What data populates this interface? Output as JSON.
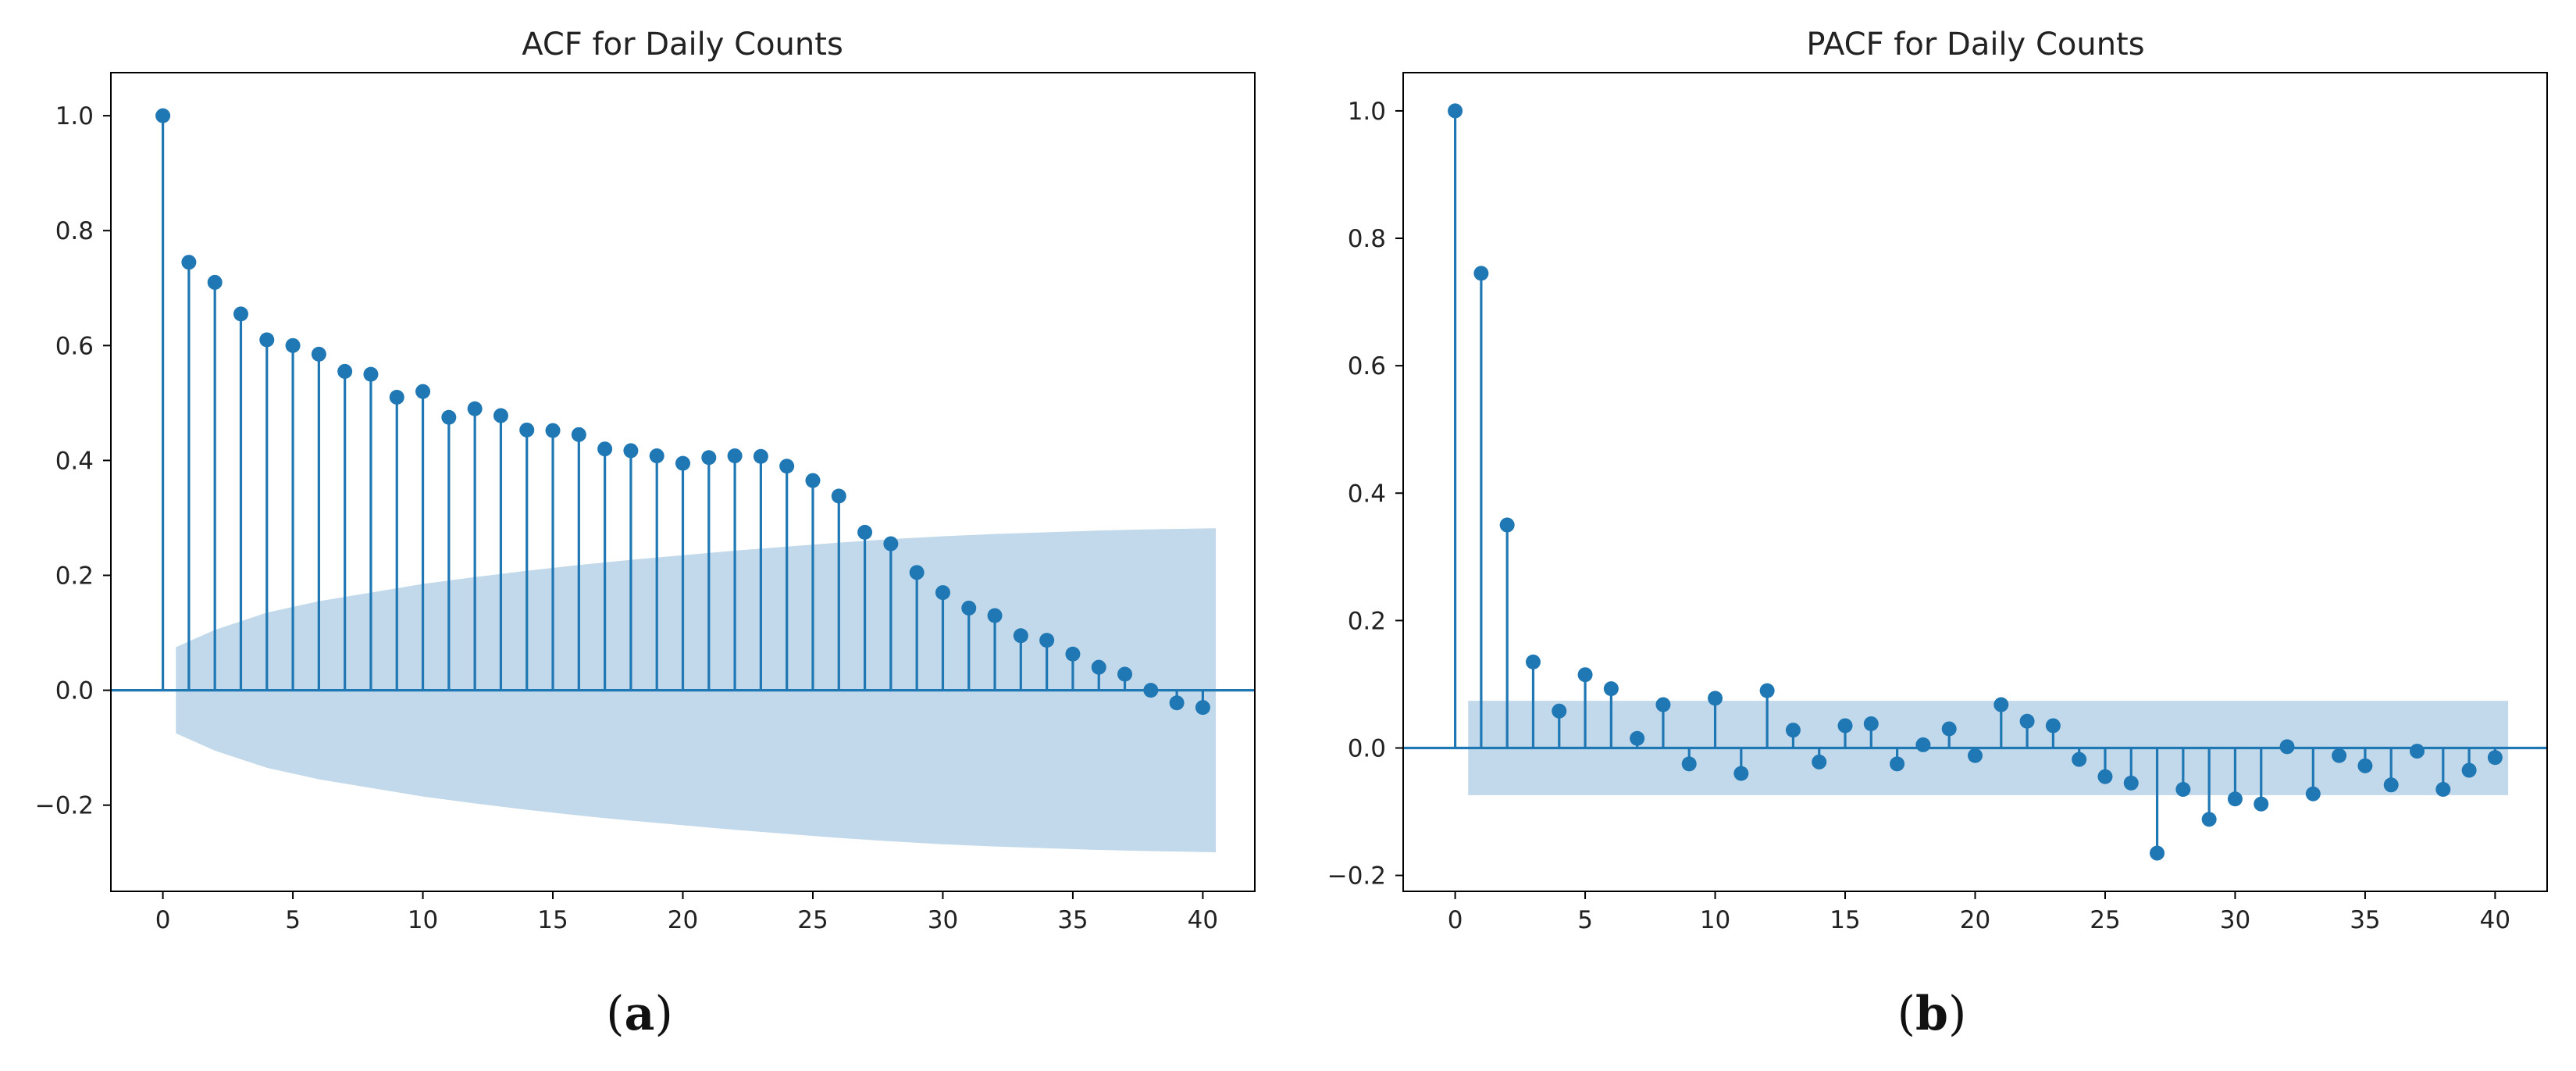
{
  "colors": {
    "stem": "#1f77b4",
    "confidence_band": "#1f77b4",
    "frame": "#000000"
  },
  "chart_data": [
    {
      "type": "stem",
      "title": "ACF for Daily Counts",
      "caption_letter": "a",
      "xlabel": "",
      "ylabel": "",
      "xlim": [
        -2,
        42
      ],
      "ylim": [
        -0.35,
        1.075
      ],
      "xticks": [
        0,
        5,
        10,
        15,
        20,
        25,
        30,
        35,
        40
      ],
      "yticks": [
        -0.2,
        0.0,
        0.2,
        0.4,
        0.6,
        0.8,
        1.0
      ],
      "ytick_labels": [
        "−0.2",
        "0.0",
        "0.2",
        "0.4",
        "0.6",
        "0.8",
        "1.0"
      ],
      "lags": [
        0,
        1,
        2,
        3,
        4,
        5,
        6,
        7,
        8,
        9,
        10,
        11,
        12,
        13,
        14,
        15,
        16,
        17,
        18,
        19,
        20,
        21,
        22,
        23,
        24,
        25,
        26,
        27,
        28,
        29,
        30,
        31,
        32,
        33,
        34,
        35,
        36,
        37,
        38,
        39,
        40
      ],
      "values": [
        1.0,
        0.745,
        0.71,
        0.655,
        0.61,
        0.6,
        0.585,
        0.555,
        0.55,
        0.51,
        0.52,
        0.475,
        0.49,
        0.478,
        0.453,
        0.452,
        0.445,
        0.42,
        0.417,
        0.408,
        0.395,
        0.405,
        0.408,
        0.407,
        0.39,
        0.365,
        0.338,
        0.275,
        0.255,
        0.205,
        0.17,
        0.143,
        0.13,
        0.095,
        0.087,
        0.063,
        0.04,
        0.028,
        0.0,
        -0.022,
        -0.03
      ],
      "confidence_band": [
        {
          "lag": 0.5,
          "bound": 0.075
        },
        {
          "lag": 2,
          "bound": 0.105
        },
        {
          "lag": 4,
          "bound": 0.135
        },
        {
          "lag": 6,
          "bound": 0.155
        },
        {
          "lag": 8,
          "bound": 0.17
        },
        {
          "lag": 10,
          "bound": 0.185
        },
        {
          "lag": 12,
          "bound": 0.197
        },
        {
          "lag": 14,
          "bound": 0.208
        },
        {
          "lag": 16,
          "bound": 0.218
        },
        {
          "lag": 18,
          "bound": 0.227
        },
        {
          "lag": 20,
          "bound": 0.235
        },
        {
          "lag": 22,
          "bound": 0.243
        },
        {
          "lag": 24,
          "bound": 0.25
        },
        {
          "lag": 26,
          "bound": 0.257
        },
        {
          "lag": 28,
          "bound": 0.263
        },
        {
          "lag": 30,
          "bound": 0.268
        },
        {
          "lag": 32,
          "bound": 0.272
        },
        {
          "lag": 34,
          "bound": 0.275
        },
        {
          "lag": 36,
          "bound": 0.278
        },
        {
          "lag": 38,
          "bound": 0.28
        },
        {
          "lag": 40.5,
          "bound": 0.282
        }
      ]
    },
    {
      "type": "stem",
      "title": "PACF for Daily Counts",
      "caption_letter": "b",
      "xlabel": "",
      "ylabel": "",
      "xlim": [
        -2,
        42
      ],
      "ylim": [
        -0.225,
        1.06
      ],
      "xticks": [
        0,
        5,
        10,
        15,
        20,
        25,
        30,
        35,
        40
      ],
      "yticks": [
        -0.2,
        0.0,
        0.2,
        0.4,
        0.6,
        0.8,
        1.0
      ],
      "ytick_labels": [
        "−0.2",
        "0.0",
        "0.2",
        "0.4",
        "0.6",
        "0.8",
        "1.0"
      ],
      "lags": [
        0,
        1,
        2,
        3,
        4,
        5,
        6,
        7,
        8,
        9,
        10,
        11,
        12,
        13,
        14,
        15,
        16,
        17,
        18,
        19,
        20,
        21,
        22,
        23,
        24,
        25,
        26,
        27,
        28,
        29,
        30,
        31,
        32,
        33,
        34,
        35,
        36,
        37,
        38,
        39,
        40
      ],
      "values": [
        1.0,
        0.745,
        0.35,
        0.135,
        0.058,
        0.115,
        0.093,
        0.015,
        0.068,
        -0.025,
        0.078,
        -0.04,
        0.09,
        0.028,
        -0.022,
        0.035,
        0.038,
        -0.025,
        0.005,
        0.03,
        -0.012,
        0.068,
        0.042,
        0.035,
        -0.018,
        -0.045,
        -0.055,
        -0.165,
        -0.065,
        -0.112,
        -0.08,
        -0.088,
        0.002,
        -0.072,
        -0.012,
        -0.028,
        -0.058,
        -0.005,
        -0.065,
        -0.035,
        -0.015
      ],
      "confidence_band": [
        {
          "lag": 0.5,
          "bound": 0.074
        },
        {
          "lag": 40.5,
          "bound": 0.074
        }
      ]
    }
  ]
}
